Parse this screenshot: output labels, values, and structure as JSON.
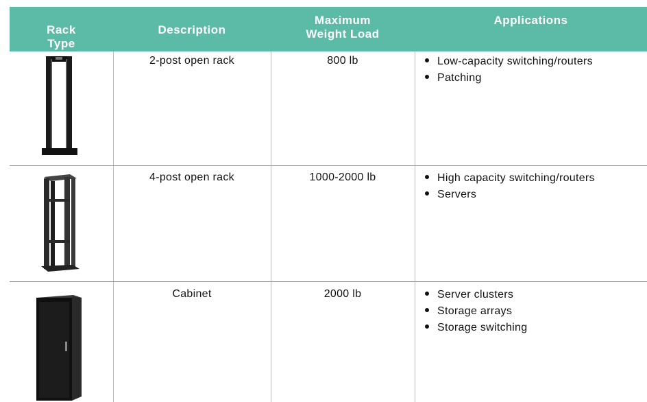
{
  "table": {
    "header": [
      "Rack Type",
      "Description",
      "Maximum Weight Load",
      "Applications"
    ],
    "rows": [
      {
        "description": "2-post open rack",
        "weight": "800 lb",
        "applications": [
          "Low-capacity switching/routers",
          "Patching"
        ]
      },
      {
        "description": "4-post open rack",
        "weight": "1000-2000 lb",
        "applications": [
          "High capacity switching/routers",
          "Servers"
        ]
      },
      {
        "description": "Cabinet",
        "weight": "2000 lb",
        "applications": [
          "Server clusters",
          "Storage arrays",
          "Storage switching"
        ]
      }
    ]
  }
}
